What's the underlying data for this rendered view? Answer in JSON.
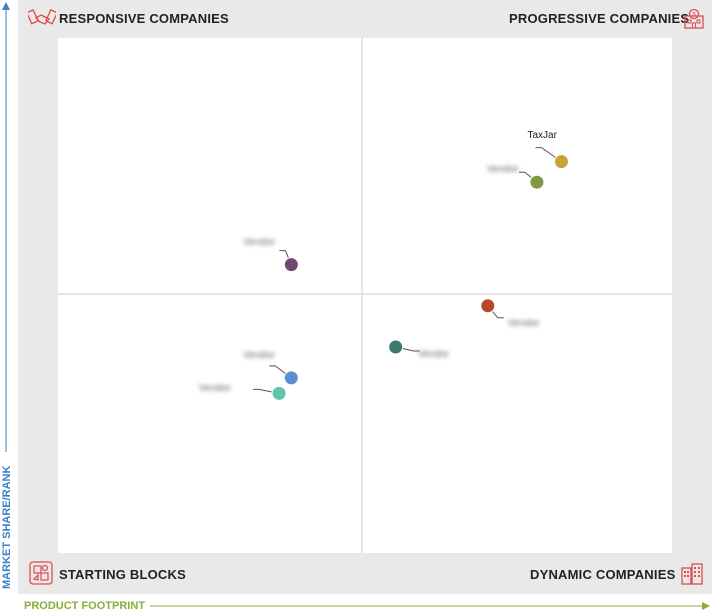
{
  "quadrants": {
    "top_left": "RESPONSIVE COMPANIES",
    "top_right": "PROGRESSIVE COMPANIES",
    "bottom_left": "STARTING BLOCKS",
    "bottom_right": "DYNAMIC COMPANIES"
  },
  "axes": {
    "y_label": "MARKET SHARE/RANK",
    "x_label": "PRODUCT FOOTPRINT"
  },
  "colors": {
    "y_axis": "#3b82c4",
    "x_axis": "#8bae3a",
    "icon": "#e04b4b"
  },
  "icons": {
    "top_left": "handshake-icon",
    "top_right": "bank-icon",
    "bottom_left": "blocks-icon",
    "bottom_right": "buildings-icon"
  },
  "chart_data": {
    "type": "scatter",
    "xlim": [
      0,
      100
    ],
    "ylim": [
      0,
      100
    ],
    "points": [
      {
        "label": "TaxJar",
        "x": 82,
        "y": 76,
        "color": "#c9a23a",
        "legible": true
      },
      {
        "label": "Vendor",
        "x": 78,
        "y": 72,
        "color": "#7f9a47",
        "legible": false
      },
      {
        "label": "Vendor",
        "x": 38,
        "y": 56,
        "color": "#6d4a6e",
        "legible": false
      },
      {
        "label": "Vendor",
        "x": 70,
        "y": 48,
        "color": "#b4492a",
        "legible": false
      },
      {
        "label": "Vendor",
        "x": 55,
        "y": 40,
        "color": "#3f7a6e",
        "legible": false
      },
      {
        "label": "Vendor",
        "x": 38,
        "y": 34,
        "color": "#5a8fd0",
        "legible": false
      },
      {
        "label": "Vendor",
        "x": 36,
        "y": 31,
        "color": "#5fc3b0",
        "legible": false
      }
    ]
  }
}
